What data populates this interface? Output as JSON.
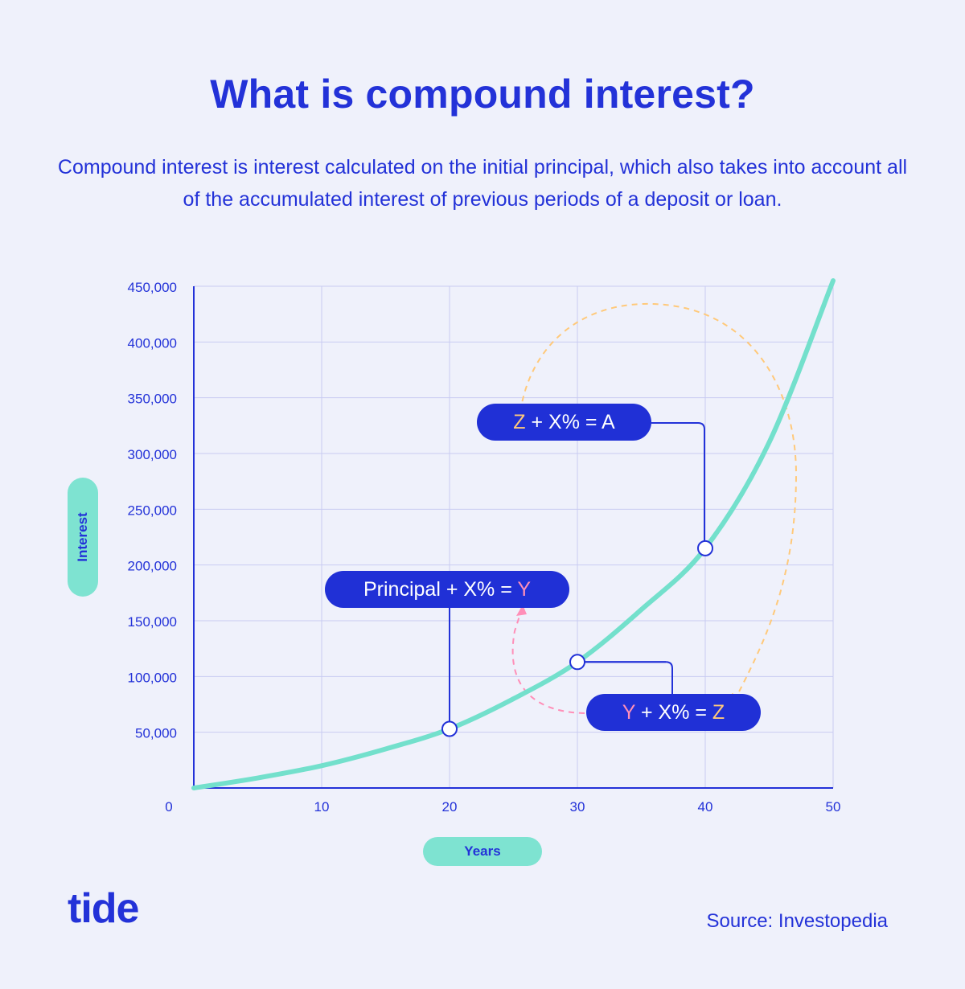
{
  "title": "What is compound interest?",
  "subtitle": "Compound interest is interest calculated on the initial principal, which also takes into account all of the accumulated interest of previous periods of a deposit or loan.",
  "logo": "tide",
  "source": "Source: Investopedia",
  "colors": {
    "background": "#eff1fb",
    "primary": "#2332d8",
    "curve": "#73e0cc",
    "bubble": "#2030d6",
    "pink_accent": "#ff8fb8",
    "orange_accent": "#ffc97a",
    "grid": "#c9ccf2"
  },
  "annotations": {
    "a1": {
      "pre": "Principal + X% = ",
      "var": "Y"
    },
    "a2": {
      "var1": "Y",
      "mid": " + X% = ",
      "var2": "Z"
    },
    "a3": {
      "var": "Z",
      "post": " + X% = A"
    }
  },
  "chart_data": {
    "type": "line",
    "title": "",
    "xlabel": "Years",
    "ylabel": "Interest",
    "xlim": [
      0,
      50
    ],
    "ylim": [
      0,
      450000
    ],
    "x_ticks": [
      0,
      10,
      20,
      30,
      40,
      50
    ],
    "y_ticks": [
      50000,
      100000,
      150000,
      200000,
      250000,
      300000,
      350000,
      400000,
      450000
    ],
    "y_tick_labels": [
      "50,000",
      "100,000",
      "150,000",
      "200,000",
      "250,000",
      "300,000",
      "350,000",
      "400,000",
      "450,000"
    ],
    "grid": true,
    "series": [
      {
        "x": [
          0,
          5,
          10,
          15,
          20,
          25,
          30,
          35,
          40,
          45,
          50
        ],
        "values": [
          0,
          9000,
          20000,
          35000,
          53000,
          80000,
          113000,
          160000,
          215000,
          310000,
          455000
        ]
      }
    ],
    "highlighted_points": [
      {
        "x": 20,
        "y": 53000
      },
      {
        "x": 30,
        "y": 113000
      },
      {
        "x": 40,
        "y": 215000
      }
    ]
  }
}
